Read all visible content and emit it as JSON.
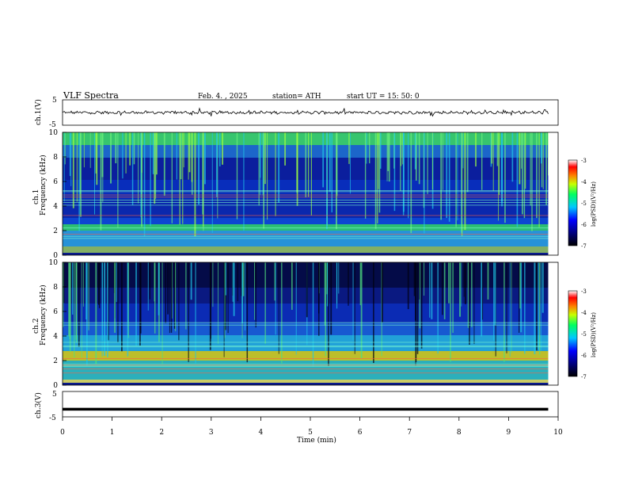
{
  "header": {
    "title": "VLF  Spectra",
    "date": "Feb. 4. , 2025",
    "station": "station= ATH",
    "start": "start  UT  =   15: 50: 0"
  },
  "chart_data": [
    {
      "type": "line",
      "name": "ch1-waveform",
      "ylabel": "ch.1(V)",
      "ylim": [
        -5,
        5
      ],
      "yticks": [
        "5",
        "-5"
      ],
      "xlim": [
        0,
        10
      ]
    },
    {
      "type": "heatmap",
      "name": "ch1-spectrogram",
      "ylabel": "ch.1\nFrequency  (kHz)",
      "ylabel_ch": "ch.1",
      "ylabel_freq": "Frequency  (kHz)",
      "ylim": [
        0,
        10
      ],
      "yticks": [
        "0",
        "2",
        "4",
        "6",
        "8",
        "10"
      ],
      "xlim": [
        0,
        10
      ],
      "colorbar": {
        "label": "log(PSD)(V²/Hz)",
        "range": [
          -7,
          -3
        ],
        "ticks": [
          "-3",
          "-4",
          "-5",
          "-6",
          "-7"
        ]
      }
    },
    {
      "type": "heatmap",
      "name": "ch2-spectrogram",
      "ylabel_ch": "ch.2",
      "ylabel_freq": "Frequency  (kHz)",
      "ylim": [
        0,
        10
      ],
      "yticks": [
        "0",
        "2",
        "4",
        "6",
        "8",
        "10"
      ],
      "xlim": [
        0,
        10
      ],
      "colorbar": {
        "label": "log(PSD)(V²/Hz)",
        "range": [
          -7,
          -3
        ],
        "ticks": [
          "-3",
          "-4",
          "-5",
          "-6",
          "-7"
        ]
      }
    },
    {
      "type": "line",
      "name": "ch3-waveform",
      "ylabel": "ch.3(V)",
      "ylim": [
        -5,
        5
      ],
      "yticks": [
        "5",
        "-5"
      ],
      "xlabel": "Time  (min)",
      "xlim": [
        0,
        10
      ],
      "xticks": [
        "0",
        "1",
        "2",
        "3",
        "4",
        "5",
        "6",
        "7",
        "8",
        "9",
        "10"
      ],
      "constant_value": -2
    }
  ]
}
